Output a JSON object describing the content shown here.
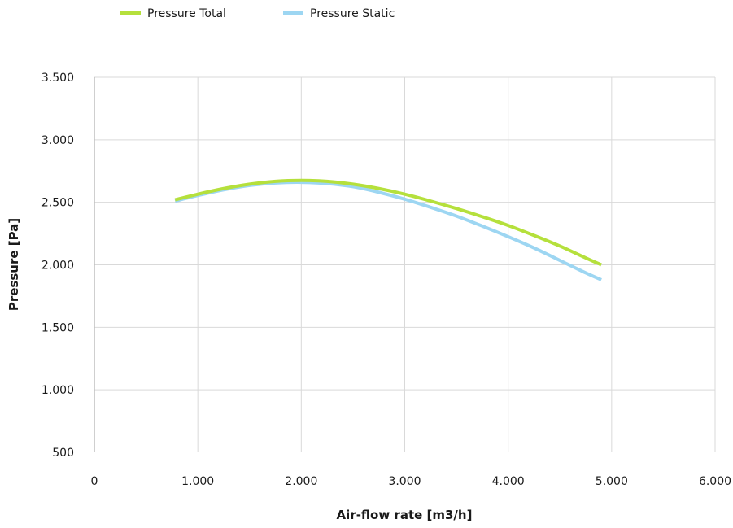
{
  "chart_data": {
    "type": "line",
    "title": "",
    "xlabel": "Air-flow rate [m3/h]",
    "ylabel": "Pressure [Pa]",
    "xlim": [
      0,
      6000
    ],
    "ylim": [
      500,
      3500
    ],
    "x_ticks": [
      0,
      1000,
      2000,
      3000,
      4000,
      5000,
      6000
    ],
    "x_tick_labels": [
      "0",
      "1.000",
      "2.000",
      "3.000",
      "4.000",
      "5.000",
      "6.000"
    ],
    "y_ticks": [
      500,
      1000,
      1500,
      2000,
      2500,
      3000,
      3500
    ],
    "y_tick_labels": [
      "500",
      "1.000",
      "1.500",
      "2.000",
      "2.500",
      "3.000",
      "3.500"
    ],
    "grid": true,
    "legend_position": "top-left",
    "series": [
      {
        "name": "Pressure Total",
        "color": "#b5e03c",
        "x": [
          780,
          1000,
          1250,
          1500,
          1750,
          2000,
          2250,
          2500,
          2750,
          3000,
          3250,
          3500,
          3750,
          4000,
          4250,
          4500,
          4750,
          4900
        ],
        "y": [
          2520,
          2565,
          2610,
          2645,
          2668,
          2675,
          2668,
          2645,
          2610,
          2565,
          2510,
          2450,
          2385,
          2315,
          2235,
          2150,
          2055,
          2000
        ]
      },
      {
        "name": "Pressure Static",
        "color": "#9dd6f2",
        "x": [
          780,
          1000,
          1250,
          1500,
          1750,
          2000,
          2250,
          2500,
          2750,
          3000,
          3250,
          3500,
          3750,
          4000,
          4250,
          4500,
          4750,
          4900
        ],
        "y": [
          2510,
          2555,
          2600,
          2635,
          2655,
          2660,
          2650,
          2625,
          2580,
          2525,
          2460,
          2390,
          2310,
          2225,
          2135,
          2035,
          1935,
          1880
        ]
      }
    ]
  }
}
